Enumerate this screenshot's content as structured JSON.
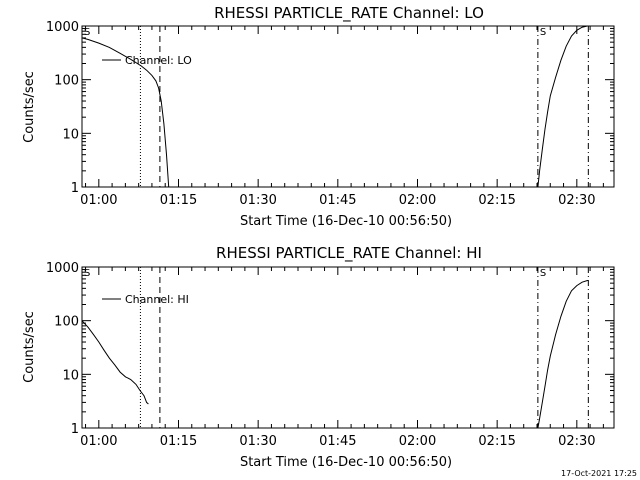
{
  "footer": {
    "timestamp": "17-Oct-2021 17:25"
  },
  "chart_data": [
    {
      "type": "line",
      "title": "RHESSI PARTICLE_RATE Channel: LO",
      "xlabel": "Start Time (16-Dec-10 00:56:50)",
      "ylabel": "Counts/sec",
      "yscale": "log",
      "ylim": [
        1,
        1000
      ],
      "xlim": [
        "00:56:50",
        "02:37:00"
      ],
      "x_ticks": [
        "01:00",
        "01:15",
        "01:30",
        "01:45",
        "02:00",
        "02:15",
        "02:30"
      ],
      "y_ticks": [
        "1",
        "10",
        "100",
        "1000"
      ],
      "legend": {
        "label": "Channel: LO",
        "placement": "top-left"
      },
      "vertical_markers": [
        {
          "time": "01:07:50",
          "style": "dotted"
        },
        {
          "time": "01:11:30",
          "style": "dashed"
        },
        {
          "time": "02:22:40",
          "style": "dash-dot"
        },
        {
          "time": "02:32:10",
          "style": "dash-dot"
        }
      ],
      "corner_marks": [
        {
          "text": "S",
          "time": "00:56:50"
        },
        {
          "text": "S",
          "time": "02:22:40"
        }
      ],
      "series": [
        {
          "segments": [
            [
              [
                "00:56:50",
                600
              ],
              [
                "00:58:00",
                560
              ],
              [
                "01:00:00",
                480
              ],
              [
                "01:02:00",
                400
              ],
              [
                "01:04:00",
                310
              ],
              [
                "01:06:00",
                240
              ],
              [
                "01:08:00",
                180
              ],
              [
                "01:09:00",
                150
              ],
              [
                "01:10:00",
                120
              ],
              [
                "01:10:45",
                95
              ],
              [
                "01:11:15",
                70
              ],
              [
                "01:11:45",
                40
              ],
              [
                "01:12:15",
                15
              ],
              [
                "01:12:45",
                4
              ],
              [
                "01:13:10",
                1
              ]
            ],
            [
              [
                "02:22:40",
                1
              ],
              [
                "02:23:00",
                2
              ],
              [
                "02:23:30",
                5
              ],
              [
                "02:24:00",
                12
              ],
              [
                "02:24:30",
                25
              ],
              [
                "02:25:00",
                50
              ],
              [
                "02:26:00",
                110
              ],
              [
                "02:27:00",
                230
              ],
              [
                "02:28:00",
                420
              ],
              [
                "02:29:00",
                650
              ],
              [
                "02:30:00",
                830
              ],
              [
                "02:31:00",
                950
              ],
              [
                "02:32:00",
                1000
              ],
              [
                "02:33:00",
                1000
              ]
            ]
          ]
        }
      ]
    },
    {
      "type": "line",
      "title": "RHESSI PARTICLE_RATE Channel: HI",
      "xlabel": "Start Time (16-Dec-10 00:56:50)",
      "ylabel": "Counts/sec",
      "yscale": "log",
      "ylim": [
        1,
        1000
      ],
      "xlim": [
        "00:56:50",
        "02:37:00"
      ],
      "x_ticks": [
        "01:00",
        "01:15",
        "01:30",
        "01:45",
        "02:00",
        "02:15",
        "02:30"
      ],
      "y_ticks": [
        "1",
        "10",
        "100",
        "1000"
      ],
      "legend": {
        "label": "Channel: HI",
        "placement": "top-left"
      },
      "vertical_markers": [
        {
          "time": "01:07:50",
          "style": "dotted"
        },
        {
          "time": "01:11:30",
          "style": "dashed"
        },
        {
          "time": "02:22:40",
          "style": "dash-dot"
        },
        {
          "time": "02:32:10",
          "style": "dash-dot"
        }
      ],
      "corner_marks": [
        {
          "text": "S",
          "time": "00:56:50"
        },
        {
          "text": "S",
          "time": "02:22:40"
        }
      ],
      "series": [
        {
          "segments": [
            [
              [
                "00:56:50",
                100
              ],
              [
                "00:58:00",
                75
              ],
              [
                "00:59:00",
                55
              ],
              [
                "01:00:00",
                40
              ],
              [
                "01:01:00",
                28
              ],
              [
                "01:02:00",
                20
              ],
              [
                "01:03:00",
                15
              ],
              [
                "01:04:00",
                11
              ],
              [
                "01:05:00",
                9
              ],
              [
                "01:06:00",
                8
              ],
              [
                "01:07:00",
                6.5
              ],
              [
                "01:07:45",
                5
              ],
              [
                "01:08:30",
                4
              ],
              [
                "01:09:00",
                3
              ],
              [
                "01:09:20",
                2.8
              ]
            ],
            [
              [
                "02:22:40",
                1
              ],
              [
                "02:23:00",
                1.5
              ],
              [
                "02:23:30",
                3
              ],
              [
                "02:24:00",
                6
              ],
              [
                "02:24:30",
                12
              ],
              [
                "02:25:00",
                22
              ],
              [
                "02:26:00",
                55
              ],
              [
                "02:27:00",
                120
              ],
              [
                "02:28:00",
                230
              ],
              [
                "02:29:00",
                360
              ],
              [
                "02:30:00",
                450
              ],
              [
                "02:31:00",
                520
              ],
              [
                "02:32:00",
                560
              ],
              [
                "02:32:10",
                560
              ]
            ]
          ]
        }
      ]
    }
  ]
}
